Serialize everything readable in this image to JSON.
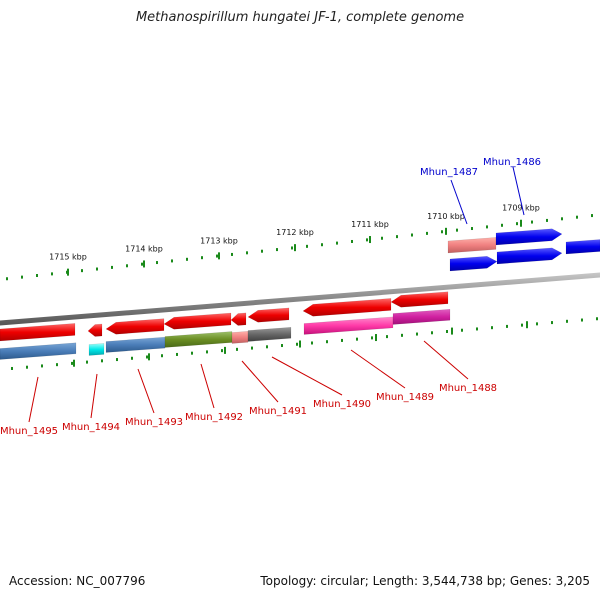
{
  "title": "Methanospirillum hungatei JF-1, complete genome",
  "accession_text": "Accession: NC_007796",
  "topology_text": "Topology: circular; Length: 3,544,738 bp; Genes: 3,205",
  "colors": {
    "backbone": "#8a8a8a",
    "tick": "#1a8a1a",
    "label_forward": "#0000cc",
    "label_reverse": "#cc0000"
  },
  "scale_labels": [
    "1715 kbp",
    "1714 kbp",
    "1713 kbp",
    "1712 kbp",
    "1711 kbp",
    "1710 kbp",
    "1709 kbp"
  ],
  "genes_forward": [
    "Mhun_1487",
    "Mhun_1486"
  ],
  "genes_reverse": [
    "Mhun_1495",
    "Mhun_1494",
    "Mhun_1493",
    "Mhun_1492",
    "Mhun_1491",
    "Mhun_1490",
    "Mhun_1489",
    "Mhun_1488"
  ]
}
